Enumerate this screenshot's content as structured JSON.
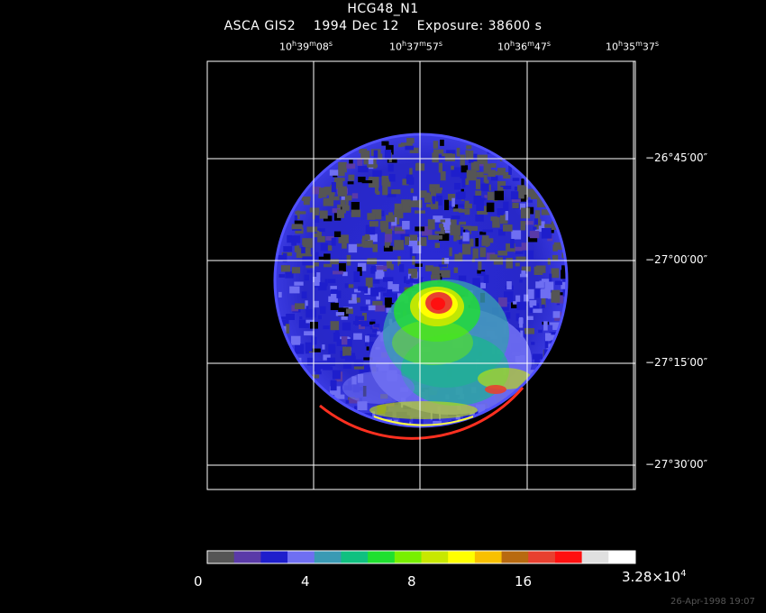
{
  "header": {
    "object": "HCG48_N1",
    "instrument": "ASCA GIS2",
    "date": "1994 Dec 12",
    "exposure": "Exposure: 38600 s"
  },
  "ra_labels": [
    {
      "h": "10",
      "m": "39",
      "s": "08"
    },
    {
      "h": "10",
      "m": "37",
      "s": "57"
    },
    {
      "h": "10",
      "m": "36",
      "s": "47"
    },
    {
      "h": "10",
      "m": "35",
      "s": "37"
    }
  ],
  "dec_labels": [
    "−26°45′00″",
    "−27°00′00″",
    "−27°15′00″",
    "−27°30′00″"
  ],
  "colorbar": {
    "colors": [
      "#555555",
      "#5a3aa8",
      "#1e1ecc",
      "#6f6ff2",
      "#3a9ab4",
      "#10c080",
      "#20e030",
      "#78f000",
      "#c8e800",
      "#ffff00",
      "#f8c000",
      "#b86a10",
      "#e84030",
      "#ff1010",
      "#e0e0e0",
      "#ffffff"
    ],
    "tick_labels": [
      "0",
      "4",
      "8",
      "16"
    ],
    "max_label_mantissa": "3.28×10",
    "max_label_exponent": "4"
  },
  "footer": "26-Apr-1998 19:07"
}
